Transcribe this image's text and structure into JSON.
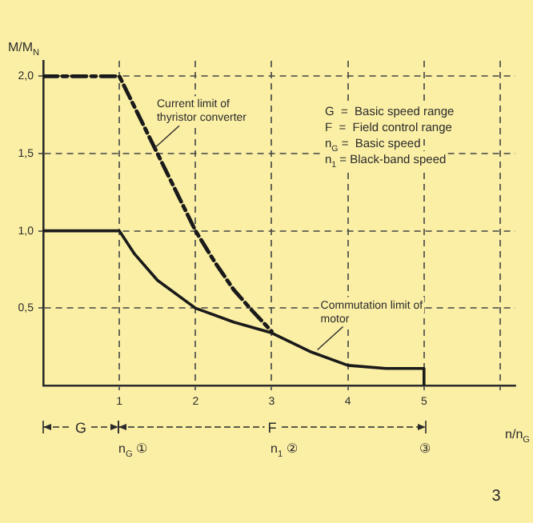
{
  "chart_data": {
    "type": "line",
    "xlabel": "n/n$_{G}$",
    "ylabel": "M/M$_{N}$",
    "xlim": [
      0,
      6.2
    ],
    "ylim": [
      0,
      2.1
    ],
    "xticks": [
      1,
      2,
      3,
      4,
      5,
      {
        "value": 6,
        "label": null
      }
    ],
    "yticks": [
      {
        "value": 0.5,
        "label": "0,5"
      },
      {
        "value": 1,
        "label": "1,0"
      },
      {
        "value": 1.5,
        "label": "1,5"
      },
      {
        "value": 2,
        "label": "2,0"
      }
    ],
    "grid": true,
    "legend": false,
    "marker": "none",
    "series": [
      {
        "color": "#1a1a1a",
        "line_style": "dashed",
        "x": [
          0,
          1,
          1.25,
          1.5,
          1.75,
          2,
          2.25,
          2.5,
          2.75,
          3
        ],
        "values": [
          2,
          2,
          1.75,
          1.5,
          1.25,
          1,
          0.8,
          0.62,
          0.48,
          0.35
        ]
      },
      {
        "color": "#1a1a1a",
        "line_style": "solid",
        "x": [
          0,
          1,
          1.2,
          1.5,
          2,
          2.5,
          3,
          3.5,
          4,
          4.5,
          5,
          5
        ],
        "values": [
          1,
          1,
          0.85,
          0.68,
          0.5,
          0.41,
          0.34,
          0.22,
          0.13,
          0.11,
          0.11,
          0
        ]
      }
    ],
    "annotations": [
      {
        "text": "Current limit of thyristor converter",
        "x": 1.45,
        "y": 1.53
      },
      {
        "text": "Commutation limit of motor",
        "x": 3.6,
        "y": 0.23
      },
      "G  =  Basic speed range",
      "F  =  Field control range",
      "n$_{G}$ =  Basic speed",
      "n$_{1}$ = Black-band speed",
      "G",
      "F",
      "n$_{G}$ ①",
      "n$_{1}$ ②",
      "③",
      "3"
    ]
  }
}
